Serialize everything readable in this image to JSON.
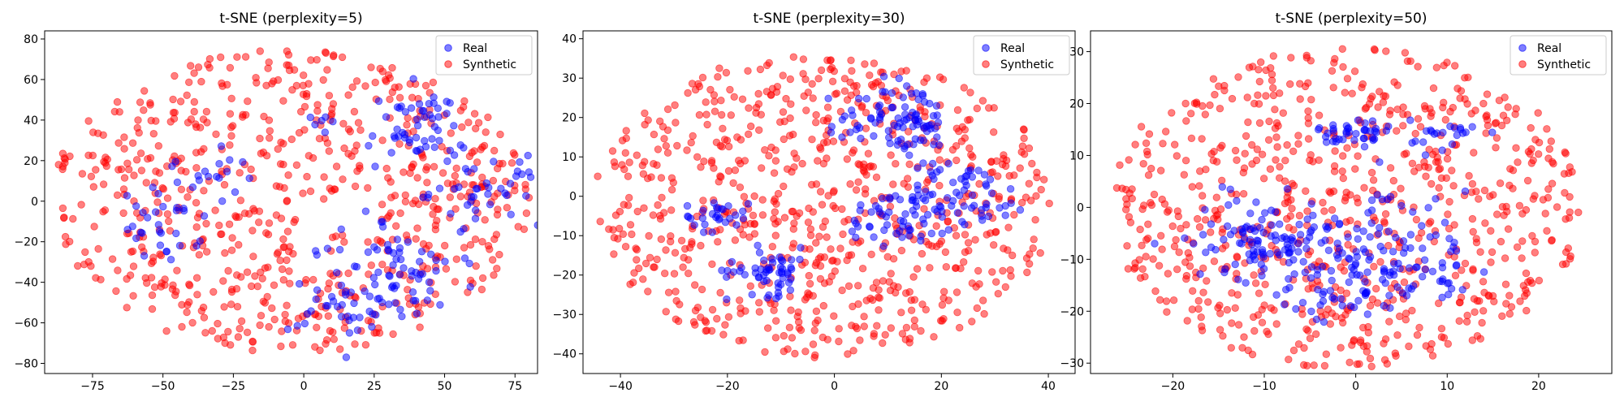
{
  "colors": {
    "real": "#0000ff",
    "synthetic": "#ff0000"
  },
  "chart_data": [
    {
      "type": "scatter",
      "title": "t-SNE (perplexity=5)",
      "xlabel": "",
      "ylabel": "",
      "xlim": [
        -92,
        83
      ],
      "ylim": [
        -85,
        84
      ],
      "xticks": [
        -75,
        -50,
        -25,
        0,
        25,
        50,
        75
      ],
      "yticks": [
        -80,
        -60,
        -40,
        -20,
        0,
        20,
        40,
        60,
        80
      ],
      "legend_position": "top-right",
      "series": [
        {
          "name": "Real",
          "color": "#0000ff",
          "clusters": [
            {
              "cx": 40,
              "cy": 35,
              "sx": 9,
              "sy": 10,
              "n": 55
            },
            {
              "cx": 65,
              "cy": 5,
              "sx": 10,
              "sy": 8,
              "n": 40
            },
            {
              "cx": 38,
              "cy": -40,
              "sx": 12,
              "sy": 10,
              "n": 50
            },
            {
              "cx": 15,
              "cy": -55,
              "sx": 10,
              "sy": 8,
              "n": 30
            },
            {
              "cx": -50,
              "cy": -12,
              "sx": 7,
              "sy": 9,
              "n": 30
            },
            {
              "cx": -35,
              "cy": 15,
              "sx": 8,
              "sy": 6,
              "n": 18
            },
            {
              "cx": 20,
              "cy": -25,
              "sx": 10,
              "sy": 10,
              "n": 20
            },
            {
              "cx": 8,
              "cy": 40,
              "sx": 4,
              "sy": 4,
              "n": 6
            }
          ]
        },
        {
          "name": "Synthetic",
          "color": "#ff0000",
          "ellipse": {
            "cx": -5,
            "cy": 0,
            "rx": 85,
            "ry": 75
          },
          "n": 700
        }
      ]
    },
    {
      "type": "scatter",
      "title": "t-SNE (perplexity=30)",
      "xlabel": "",
      "ylabel": "",
      "xlim": [
        -47,
        45
      ],
      "ylim": [
        -45,
        42
      ],
      "xticks": [
        -40,
        -20,
        0,
        20,
        40
      ],
      "yticks": [
        -40,
        -30,
        -20,
        -10,
        0,
        10,
        20,
        30,
        40
      ],
      "legend_position": "top-right",
      "series": [
        {
          "name": "Real",
          "color": "#0000ff",
          "clusters": [
            {
              "cx": 14,
              "cy": 18,
              "sx": 4,
              "sy": 6,
              "n": 75
            },
            {
              "cx": 25,
              "cy": 0,
              "sx": 6,
              "sy": 4,
              "n": 60
            },
            {
              "cx": 12,
              "cy": -5,
              "sx": 5,
              "sy": 4,
              "n": 50
            },
            {
              "cx": -12,
              "cy": -19,
              "sx": 4,
              "sy": 3,
              "n": 55
            },
            {
              "cx": -22,
              "cy": -5,
              "sx": 3,
              "sy": 2,
              "n": 28
            },
            {
              "cx": 5,
              "cy": 20,
              "sx": 3,
              "sy": 3,
              "n": 18
            }
          ]
        },
        {
          "name": "Synthetic",
          "color": "#ff0000",
          "ellipse": {
            "cx": -2,
            "cy": -2,
            "rx": 43,
            "ry": 39
          },
          "n": 750
        }
      ]
    },
    {
      "type": "scatter",
      "title": "t-SNE (perplexity=50)",
      "xlabel": "",
      "ylabel": "",
      "xlim": [
        -29,
        28
      ],
      "ylim": [
        -32,
        34
      ],
      "xticks": [
        -20,
        -10,
        0,
        10,
        20
      ],
      "yticks": [
        -30,
        -20,
        -10,
        0,
        10,
        20,
        30
      ],
      "legend_position": "top-right",
      "series": [
        {
          "name": "Real",
          "color": "#0000ff",
          "clusters": [
            {
              "cx": -10,
              "cy": -6,
              "sx": 4,
              "sy": 4,
              "n": 110
            },
            {
              "cx": 3,
              "cy": -10,
              "sx": 5,
              "sy": 4,
              "n": 100
            },
            {
              "cx": 0,
              "cy": 14,
              "sx": 2,
              "sy": 2,
              "n": 40
            },
            {
              "cx": 10,
              "cy": 14,
              "sx": 2,
              "sy": 1.5,
              "n": 22
            },
            {
              "cx": -1,
              "cy": -18,
              "sx": 4,
              "sy": 2,
              "n": 30
            },
            {
              "cx": 6,
              "cy": 1,
              "sx": 3,
              "sy": 2,
              "n": 12
            }
          ]
        },
        {
          "name": "Synthetic",
          "color": "#ff0000",
          "ellipse": {
            "cx": -1,
            "cy": 0,
            "rx": 26,
            "ry": 31
          },
          "n": 750
        }
      ]
    }
  ]
}
